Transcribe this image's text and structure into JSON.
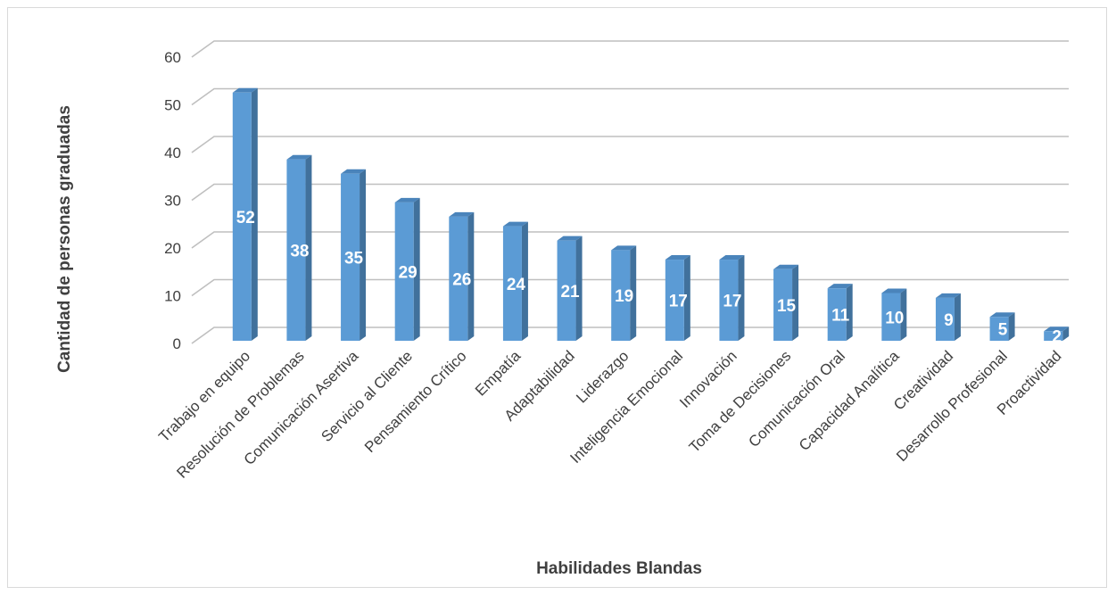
{
  "chart_data": {
    "type": "bar",
    "categories": [
      "Trabajo en equipo",
      "Resolución de Problemas",
      "Comunicación Asertiva",
      "Servicio al Cliente",
      "Pensamiento Crítico",
      "Empatía",
      "Adaptabilidad",
      "Liderazgo",
      "Inteligencia Emocional",
      "Innovación",
      "Toma de Decisiones",
      "Comunicación Oral",
      "Capacidad Analítica",
      "Creatividad",
      "Desarrollo Profesional",
      "Proactividad"
    ],
    "values": [
      52,
      38,
      35,
      29,
      26,
      24,
      21,
      19,
      17,
      17,
      15,
      11,
      10,
      9,
      5,
      2
    ],
    "title": "",
    "xlabel": "Habilidades Blandas",
    "ylabel": "Cantidad de personas graduadas",
    "ylim": [
      0,
      60
    ],
    "yticks": [
      0,
      10,
      20,
      30,
      40,
      50,
      60
    ],
    "grid": true,
    "style": "3d-column",
    "bar_color": "#5b9bd5",
    "bar_side_color": "#41719c",
    "bar_top_color": "#4a84bb",
    "data_label_color": "#ffffff",
    "gridline_color": "#bfbfbf"
  }
}
